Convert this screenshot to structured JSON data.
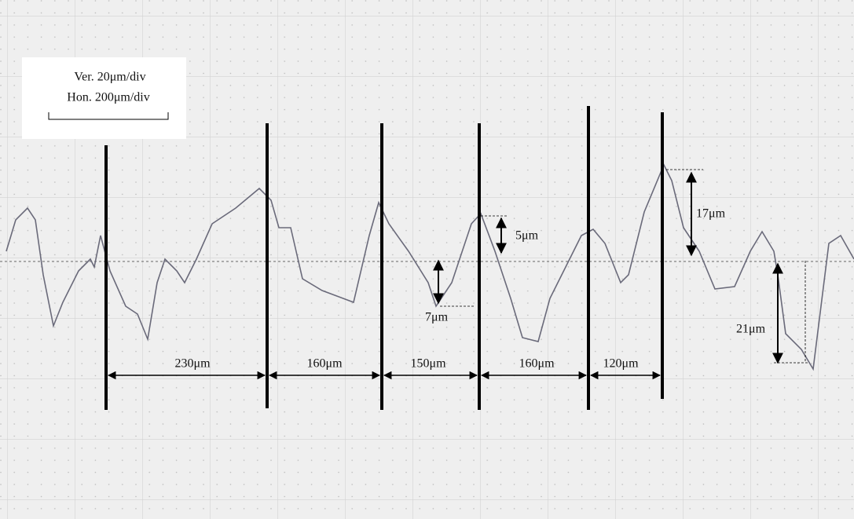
{
  "legend": {
    "vertical": "Ver. 20μm/div",
    "horizontal": "Hon. 200μm/div"
  },
  "spacings": [
    "230μm",
    "160μm",
    "150μm",
    "160μm",
    "120μm"
  ],
  "depths": [
    "5μm",
    "7μm",
    "17μm",
    "21μm"
  ]
}
